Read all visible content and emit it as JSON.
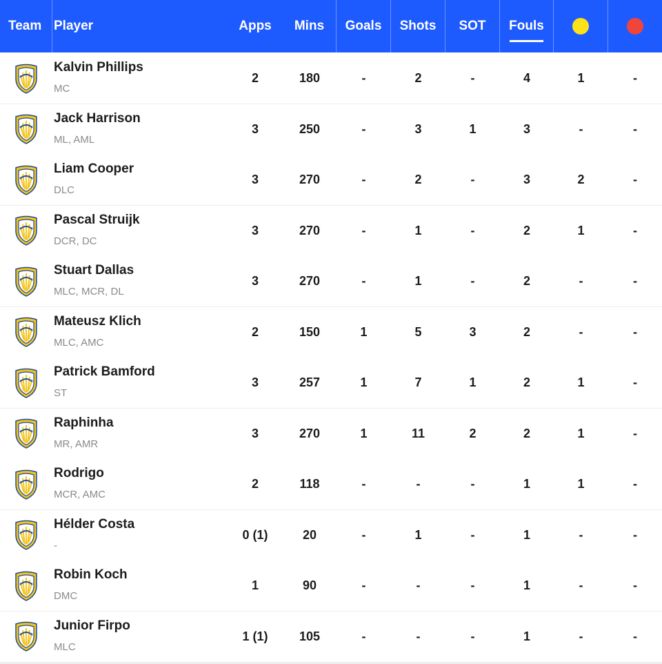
{
  "header": {
    "team": "Team",
    "player": "Player",
    "apps": "Apps",
    "mins": "Mins",
    "goals": "Goals",
    "shots": "Shots",
    "sot": "SOT",
    "fouls": "Fouls",
    "yellow_icon": "yellow-card-icon",
    "red_icon": "red-card-icon",
    "active_sort": "Fouls"
  },
  "colors": {
    "header_bg": "#1e5bff",
    "yellow_card": "#ffe11a",
    "red_card": "#f0453a",
    "crest_blue": "#1d4c9e",
    "crest_yellow": "#f4c51c"
  },
  "team_icon": "leeds-united-crest-icon",
  "players": [
    {
      "name": "Kalvin Phillips",
      "pos": "MC",
      "apps": "2",
      "mins": "180",
      "goals": "-",
      "shots": "2",
      "sot": "-",
      "fouls": "4",
      "yellow": "1",
      "red": "-"
    },
    {
      "name": "Jack Harrison",
      "pos": "ML, AML",
      "apps": "3",
      "mins": "250",
      "goals": "-",
      "shots": "3",
      "sot": "1",
      "fouls": "3",
      "yellow": "-",
      "red": "-"
    },
    {
      "name": "Liam Cooper",
      "pos": "DLC",
      "apps": "3",
      "mins": "270",
      "goals": "-",
      "shots": "2",
      "sot": "-",
      "fouls": "3",
      "yellow": "2",
      "red": "-"
    },
    {
      "name": "Pascal Struijk",
      "pos": "DCR, DC",
      "apps": "3",
      "mins": "270",
      "goals": "-",
      "shots": "1",
      "sot": "-",
      "fouls": "2",
      "yellow": "1",
      "red": "-"
    },
    {
      "name": "Stuart Dallas",
      "pos": "MLC, MCR, DL",
      "apps": "3",
      "mins": "270",
      "goals": "-",
      "shots": "1",
      "sot": "-",
      "fouls": "2",
      "yellow": "-",
      "red": "-"
    },
    {
      "name": "Mateusz Klich",
      "pos": "MLC, AMC",
      "apps": "2",
      "mins": "150",
      "goals": "1",
      "shots": "5",
      "sot": "3",
      "fouls": "2",
      "yellow": "-",
      "red": "-"
    },
    {
      "name": "Patrick Bamford",
      "pos": "ST",
      "apps": "3",
      "mins": "257",
      "goals": "1",
      "shots": "7",
      "sot": "1",
      "fouls": "2",
      "yellow": "1",
      "red": "-"
    },
    {
      "name": "Raphinha",
      "pos": "MR, AMR",
      "apps": "3",
      "mins": "270",
      "goals": "1",
      "shots": "11",
      "sot": "2",
      "fouls": "2",
      "yellow": "1",
      "red": "-"
    },
    {
      "name": "Rodrigo",
      "pos": "MCR, AMC",
      "apps": "2",
      "mins": "118",
      "goals": "-",
      "shots": "-",
      "sot": "-",
      "fouls": "1",
      "yellow": "1",
      "red": "-"
    },
    {
      "name": "Hélder Costa",
      "pos": "-",
      "apps": "0 (1)",
      "mins": "20",
      "goals": "-",
      "shots": "1",
      "sot": "-",
      "fouls": "1",
      "yellow": "-",
      "red": "-"
    },
    {
      "name": "Robin Koch",
      "pos": "DMC",
      "apps": "1",
      "mins": "90",
      "goals": "-",
      "shots": "-",
      "sot": "-",
      "fouls": "1",
      "yellow": "-",
      "red": "-"
    },
    {
      "name": "Junior Firpo",
      "pos": "MLC",
      "apps": "1 (1)",
      "mins": "105",
      "goals": "-",
      "shots": "-",
      "sot": "-",
      "fouls": "1",
      "yellow": "-",
      "red": "-"
    }
  ]
}
